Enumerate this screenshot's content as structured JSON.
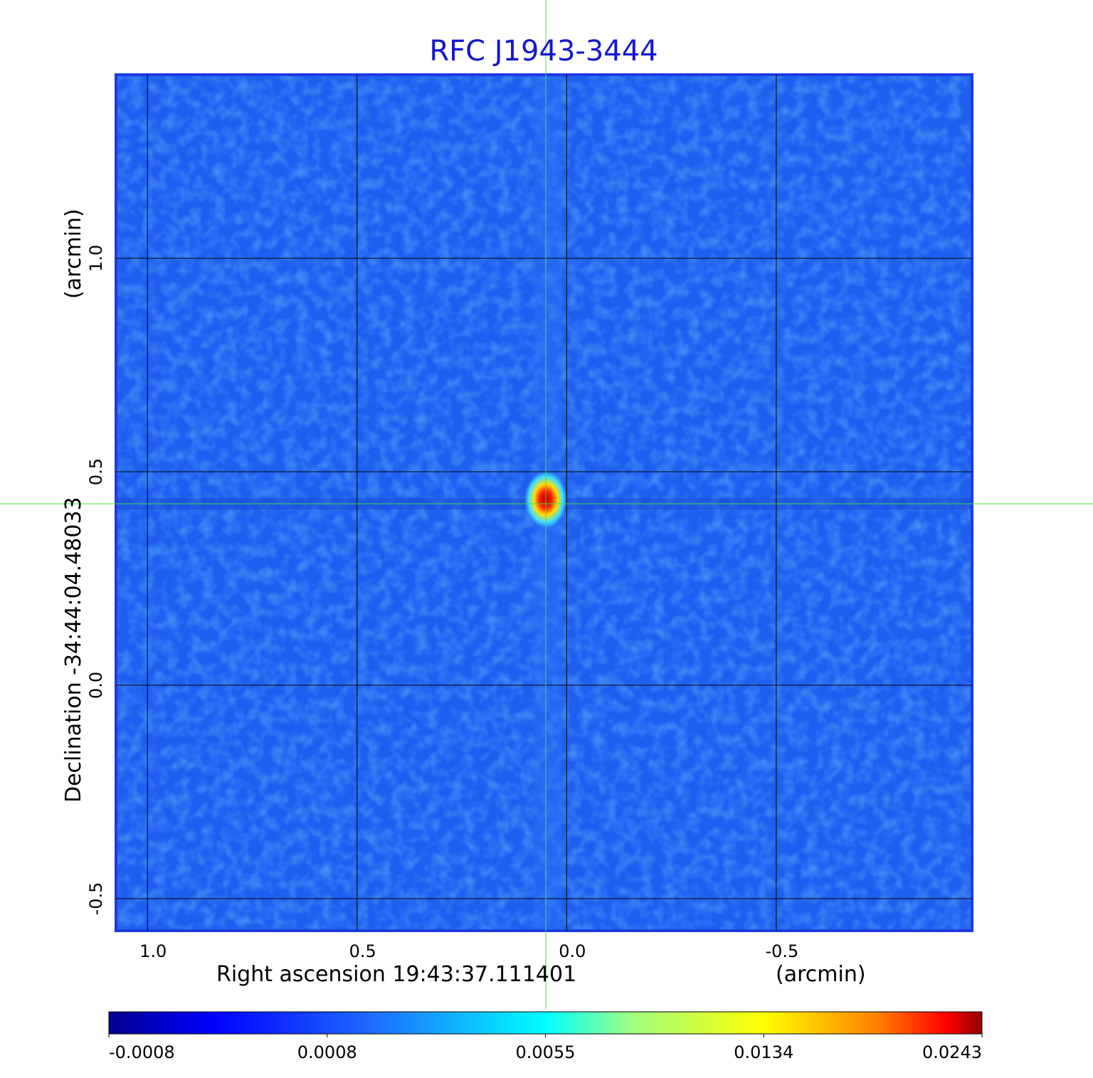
{
  "chart_data": {
    "type": "image",
    "title": "RFC J1943-3444",
    "x_label": "Right ascension  19:43:37.111401",
    "x_unit": "(arcmin)",
    "y_label": "Declination  -34:44:04.48033",
    "y_unit": "(arcmin)",
    "xlim": [
      1.075,
      -0.967
    ],
    "ylim": [
      -0.575,
      1.43
    ],
    "xticks": [
      {
        "value": 1,
        "label": "1.0"
      },
      {
        "value": 0.5,
        "label": "0.5"
      },
      {
        "value": 0,
        "label": "0.0"
      },
      {
        "value": -0.5,
        "label": "-0.5"
      }
    ],
    "yticks": [
      {
        "value": 1,
        "label": "1.0"
      },
      {
        "value": 0.5,
        "label": "0.5"
      },
      {
        "value": 0,
        "label": "0.0"
      },
      {
        "value": -0.5,
        "label": "-0.5"
      }
    ],
    "grid": true,
    "colorbar_ticks": [
      -0.0008,
      0.0008,
      0.0055,
      0.0134,
      0.0243
    ]
  }
}
